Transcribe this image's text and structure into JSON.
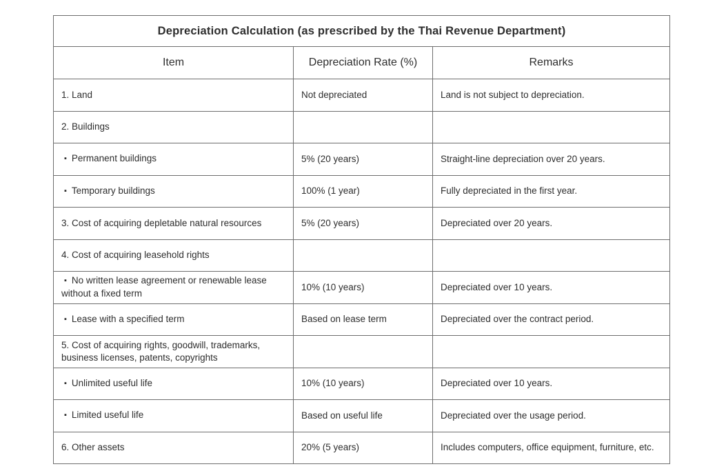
{
  "table": {
    "title": "Depreciation Calculation (as prescribed by the Thai Revenue Department)",
    "columns": [
      "Item",
      "Depreciation Rate (%)",
      "Remarks"
    ],
    "bullet_char": "▪",
    "text_color": "#2d2d2d",
    "border_color": "#6d6d6d",
    "rows": [
      {
        "bullet": false,
        "item": "1. Land",
        "rate": "Not depreciated",
        "remarks": "Land is not subject to depreciation."
      },
      {
        "bullet": false,
        "item": "2. Buildings",
        "rate": "",
        "remarks": ""
      },
      {
        "bullet": true,
        "item": "Permanent buildings",
        "rate": "5% (20 years)",
        "remarks": "Straight-line depreciation over 20 years."
      },
      {
        "bullet": true,
        "item": "Temporary buildings",
        "rate": "100% (1 year)",
        "remarks": "Fully depreciated in the first year."
      },
      {
        "bullet": false,
        "item": "3. Cost of acquiring depletable natural resources",
        "rate": "5% (20 years)",
        "remarks": "Depreciated over 20 years."
      },
      {
        "bullet": false,
        "item": "4. Cost of acquiring leasehold rights",
        "rate": "",
        "remarks": ""
      },
      {
        "bullet": true,
        "item": "No written lease agreement or renewable lease without a fixed term",
        "rate": "10% (10 years)",
        "remarks": "Depreciated over 10 years."
      },
      {
        "bullet": true,
        "item": "Lease with a specified term",
        "rate": "Based on lease term",
        "remarks": "Depreciated over the contract period."
      },
      {
        "bullet": false,
        "item": "5. Cost of acquiring rights, goodwill, trademarks, business licenses, patents, copyrights",
        "rate": "",
        "remarks": ""
      },
      {
        "bullet": true,
        "item": "Unlimited useful life",
        "rate": "10% (10 years)",
        "remarks": "Depreciated over 10 years."
      },
      {
        "bullet": true,
        "item": "Limited useful life",
        "rate": "Based on useful life",
        "remarks": "Depreciated over the usage period."
      },
      {
        "bullet": false,
        "item": "6. Other assets",
        "rate": "20% (5 years)",
        "remarks": "Includes computers, office equipment, furniture, etc."
      }
    ]
  }
}
